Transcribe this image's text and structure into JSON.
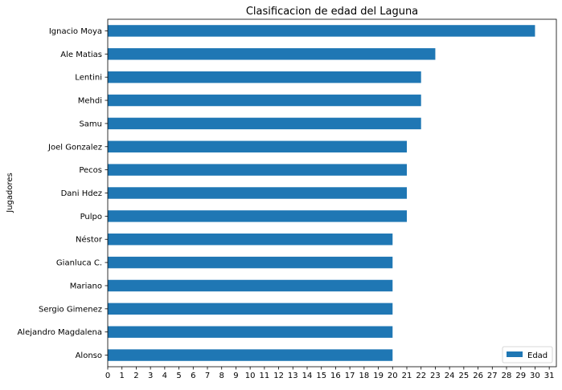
{
  "chart_data": {
    "type": "bar",
    "orientation": "horizontal",
    "title": "Clasificacion de edad del Laguna",
    "xlabel": "",
    "ylabel": "Jugadores",
    "xlim": [
      0,
      31.5
    ],
    "xticks": [
      0,
      1,
      2,
      3,
      4,
      5,
      6,
      7,
      8,
      9,
      10,
      11,
      12,
      13,
      14,
      15,
      16,
      17,
      18,
      19,
      20,
      21,
      22,
      23,
      24,
      25,
      26,
      27,
      28,
      29,
      30,
      31
    ],
    "categories": [
      "Ignacio Moya",
      "Ale Matias",
      "Lentini",
      "Mehdi",
      "Samu",
      "Joel Gonzalez",
      "Pecos",
      "Dani Hdez",
      "Pulpo",
      "Néstor",
      "Gianluca C.",
      "Mariano",
      "Sergio Gimenez",
      "Alejandro Magdalena",
      "Alonso"
    ],
    "series": [
      {
        "name": "Edad",
        "color": "#1f77b4",
        "values": [
          30,
          23,
          22,
          22,
          22,
          21,
          21,
          21,
          21,
          20,
          20,
          20,
          20,
          20,
          20
        ]
      }
    ],
    "legend": {
      "position": "bottom-right",
      "entries": [
        "Edad"
      ]
    },
    "grid": false
  }
}
